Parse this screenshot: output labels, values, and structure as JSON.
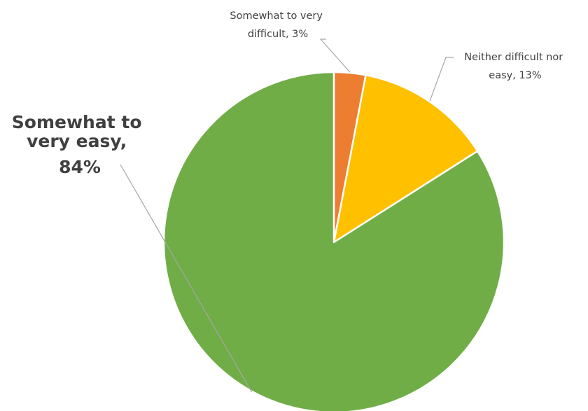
{
  "chart_data": {
    "type": "pie",
    "title": "",
    "start_angle": "12 o'clock",
    "direction": "clockwise",
    "legend": "none",
    "slices": [
      {
        "label_lines": [
          "Somewhat to very",
          "difficult, 3%"
        ],
        "category": "Somewhat to very difficult",
        "value": 3,
        "color": "#ED7D31"
      },
      {
        "label_lines": [
          "Neither difficult nor",
          "easy, 13%"
        ],
        "category": "Neither difficult nor easy",
        "value": 13,
        "color": "#FFC000"
      },
      {
        "label_lines": [
          "Somewhat to",
          "very easy,",
          "84%"
        ],
        "category": "Somewhat to very easy",
        "value": 84,
        "color": "#70AD47"
      }
    ]
  }
}
